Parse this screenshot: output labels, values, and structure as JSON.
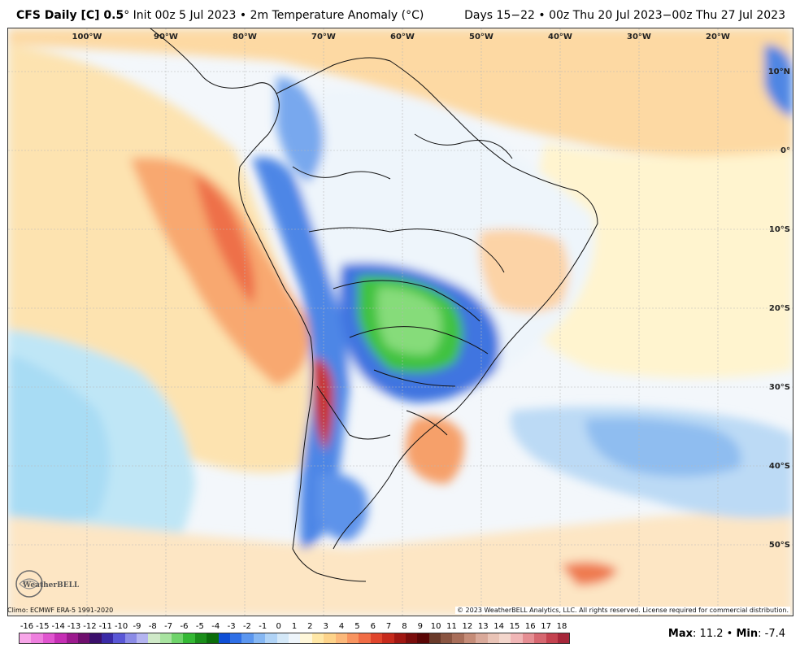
{
  "header": {
    "model": "CFS Daily [C] 0.5",
    "degree_mark": "°",
    "init": "Init 00z 5 Jul 2023",
    "bullet": "•",
    "variable": "2m Temperature Anomaly (°C)",
    "valid": "Days 15−22 • 00z Thu 20 Jul 2023−00z Thu 27 Jul 2023"
  },
  "map": {
    "longitude_labels": [
      "100°W",
      "90°W",
      "80°W",
      "70°W",
      "60°W",
      "50°W",
      "40°W",
      "30°W",
      "20°W"
    ],
    "latitude_labels": [
      "10°N",
      "0°",
      "10°S",
      "20°S",
      "30°S",
      "40°S",
      "50°S"
    ]
  },
  "footer": {
    "climo": "Climo: ECMWF ERA-5 1991-2020",
    "copyright": "© 2023 WeatherBELL Analytics, LLC. All rights reserved. License required for commercial distribution."
  },
  "logo": {
    "text": "WeatherBELL"
  },
  "colorbar": {
    "labels": [
      "-16",
      "-15",
      "-14",
      "-13",
      "-12",
      "-11",
      "-10",
      "-9",
      "-8",
      "-7",
      "-6",
      "-5",
      "-4",
      "-3",
      "-2",
      "-1",
      "0",
      "1",
      "2",
      "3",
      "4",
      "5",
      "6",
      "7",
      "8",
      "9",
      "10",
      "11",
      "12",
      "13",
      "14",
      "15",
      "16",
      "17",
      "18"
    ],
    "colors": [
      "#f7a6e8",
      "#ee7fde",
      "#e055cf",
      "#c52fb4",
      "#9c1a8e",
      "#6f0f6e",
      "#3b0f6b",
      "#3a2aa6",
      "#5a57d6",
      "#8b8be6",
      "#b4b4f0",
      "#cfe9c8",
      "#a8e3a0",
      "#6fd36a",
      "#34b834",
      "#1a8e1a",
      "#0b6d0b",
      "#0f4fd6",
      "#2f6fe6",
      "#5b96ef",
      "#86b7f3",
      "#b0d3f6",
      "#d4e8f8",
      "#eef5fb",
      "#fff7da",
      "#ffe7a6",
      "#fdd38a",
      "#fbb87a",
      "#f89460",
      "#f06c45",
      "#e0452c",
      "#c62a1c",
      "#a01712",
      "#7a0d0c",
      "#5a0606",
      "#6a3a2a",
      "#8a5542",
      "#a86e5a",
      "#c58c78",
      "#d9a99a",
      "#e9c3b6",
      "#f3d6cc",
      "#f0b6b6",
      "#e58e93",
      "#d66770",
      "#c4424f",
      "#a6273a"
    ]
  },
  "stats": {
    "max_label": "Max",
    "max_value": ": 11.2",
    "sep": "•",
    "min_label": "Min",
    "min_value": ": -7.4"
  }
}
